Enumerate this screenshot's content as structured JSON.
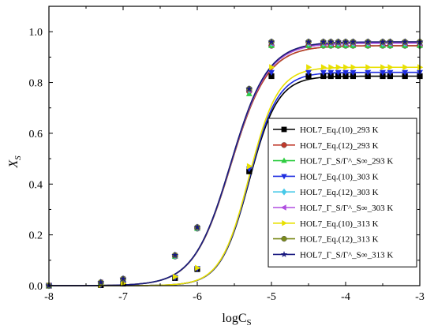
{
  "chart_data": {
    "type": "line",
    "xlabel": "logC",
    "xlabel_sub": "S",
    "ylabel": "X",
    "ylabel_sub": "S",
    "xlim": [
      -8,
      -3
    ],
    "ylim": [
      0,
      1.1
    ],
    "x_ticks": [
      -8,
      -7,
      -6,
      -5,
      -4,
      -3
    ],
    "x_tick_labels": [
      "-8",
      "-7",
      "-6",
      "-5",
      "-4",
      "-3"
    ],
    "y_ticks": [
      0,
      0.2,
      0.4,
      0.6,
      0.8,
      1.0
    ],
    "y_tick_labels": [
      "0.0",
      "0.2",
      "0.4",
      "0.6",
      "0.8",
      "1.0"
    ],
    "grid": false,
    "legend_position": "right",
    "x": [
      -8.0,
      -7.3,
      -7.0,
      -6.3,
      -6.0,
      -5.3,
      -5.0,
      -4.5,
      -4.3,
      -4.2,
      -4.1,
      -4.0,
      -3.9,
      -3.7,
      -3.5,
      -3.4,
      -3.2,
      -3.0
    ],
    "series": [
      {
        "name": "HOL7_Eq.(10)_293 K",
        "color": "#000000",
        "marker": "square",
        "values": [
          0.0,
          0.002,
          0.008,
          0.03,
          0.065,
          0.45,
          0.825,
          0.825,
          0.825,
          0.825,
          0.825,
          0.825,
          0.825,
          0.825,
          0.825,
          0.825,
          0.825,
          0.825
        ]
      },
      {
        "name": "HOL7_Eq.(12)_293 K",
        "color": "#c0392b",
        "marker": "circle",
        "values": [
          0.0,
          0.012,
          0.025,
          0.115,
          0.225,
          0.765,
          0.945,
          0.945,
          0.945,
          0.945,
          0.945,
          0.945,
          0.945,
          0.945,
          0.945,
          0.945,
          0.945,
          0.945
        ]
      },
      {
        "name": "HOL7_Γ_S/Γ^_S∞_293 K",
        "color": "#2ecc40",
        "marker": "triangle-up",
        "values": [
          0.0,
          0.012,
          0.025,
          0.115,
          0.225,
          0.755,
          0.945,
          0.945,
          0.945,
          0.945,
          0.945,
          0.945,
          0.945,
          0.945,
          0.945,
          0.945,
          0.945,
          0.945
        ]
      },
      {
        "name": "HOL7_Eq.(10)_303 K",
        "color": "#1f2ee0",
        "marker": "triangle-down",
        "values": [
          0.0,
          0.003,
          0.009,
          0.032,
          0.068,
          0.46,
          0.84,
          0.84,
          0.84,
          0.84,
          0.84,
          0.84,
          0.84,
          0.84,
          0.84,
          0.84,
          0.84,
          0.84
        ]
      },
      {
        "name": "HOL7_Eq.(12)_303 K",
        "color": "#48c9e8",
        "marker": "diamond",
        "values": [
          0.0,
          0.012,
          0.026,
          0.118,
          0.228,
          0.77,
          0.955,
          0.955,
          0.955,
          0.955,
          0.955,
          0.955,
          0.955,
          0.955,
          0.955,
          0.955,
          0.955,
          0.955
        ]
      },
      {
        "name": "HOL7_Γ_S/Γ^_S∞_303 K",
        "color": "#b04ee0",
        "marker": "triangle-left",
        "values": [
          0.0,
          0.012,
          0.026,
          0.118,
          0.228,
          0.77,
          0.955,
          0.955,
          0.955,
          0.955,
          0.955,
          0.955,
          0.955,
          0.955,
          0.955,
          0.955,
          0.955,
          0.955
        ]
      },
      {
        "name": "HOL7_Eq.(10)_313 K",
        "color": "#e8e000",
        "marker": "triangle-right",
        "values": [
          0.0,
          0.003,
          0.009,
          0.035,
          0.07,
          0.47,
          0.86,
          0.86,
          0.86,
          0.86,
          0.86,
          0.86,
          0.86,
          0.86,
          0.86,
          0.86,
          0.86,
          0.86
        ]
      },
      {
        "name": "HOL7_Eq.(12)_313 K",
        "color": "#7a8a1a",
        "marker": "circle",
        "values": [
          0.0,
          0.013,
          0.027,
          0.12,
          0.23,
          0.775,
          0.96,
          0.96,
          0.96,
          0.96,
          0.96,
          0.96,
          0.96,
          0.96,
          0.96,
          0.96,
          0.96,
          0.96
        ]
      },
      {
        "name": "HOL7_Γ_S/Γ^_S∞_313 K",
        "color": "#1a1a80",
        "marker": "star",
        "values": [
          0.0,
          0.013,
          0.027,
          0.12,
          0.23,
          0.775,
          0.96,
          0.96,
          0.96,
          0.96,
          0.96,
          0.96,
          0.96,
          0.96,
          0.96,
          0.96,
          0.96,
          0.96
        ]
      }
    ],
    "curves": [
      {
        "color": "#000000",
        "max": 0.825,
        "x0": -5.3,
        "k": 5.2
      },
      {
        "color": "#1f2ee0",
        "max": 0.84,
        "x0": -5.3,
        "k": 5.2
      },
      {
        "color": "#e8e000",
        "max": 0.86,
        "x0": -5.3,
        "k": 5.2
      },
      {
        "color": "#2ecc40",
        "max": 0.945,
        "x0": -5.55,
        "k": 4.0
      },
      {
        "color": "#c0392b",
        "max": 0.945,
        "x0": -5.55,
        "k": 4.0
      },
      {
        "color": "#48c9e8",
        "max": 0.955,
        "x0": -5.55,
        "k": 4.0
      },
      {
        "color": "#b04ee0",
        "max": 0.955,
        "x0": -5.55,
        "k": 4.0
      },
      {
        "color": "#7a8a1a",
        "max": 0.96,
        "x0": -5.55,
        "k": 4.0
      },
      {
        "color": "#1a1a80",
        "max": 0.96,
        "x0": -5.55,
        "k": 4.0
      }
    ]
  }
}
